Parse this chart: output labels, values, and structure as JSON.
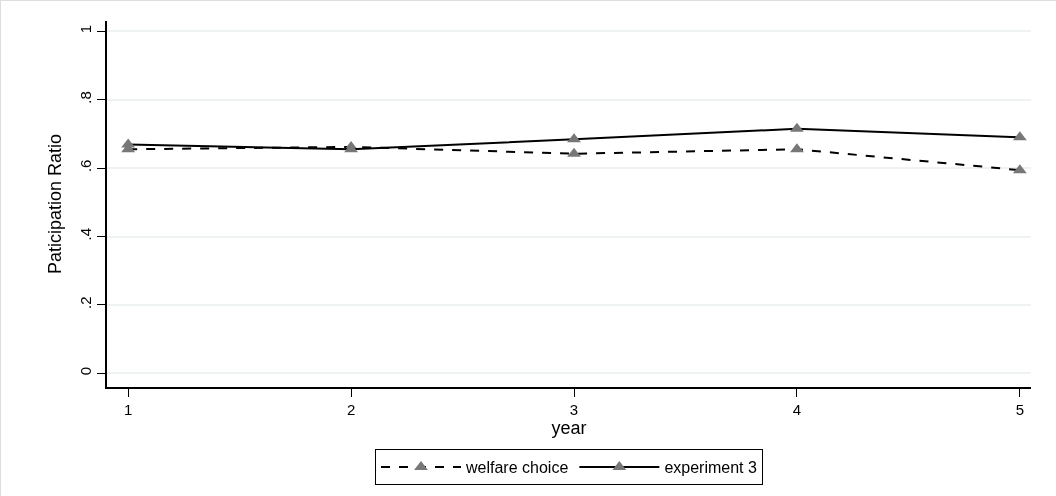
{
  "chart_data": {
    "type": "line",
    "xlabel": "year",
    "ylabel": "Paticipation Ratio",
    "x": [
      1,
      2,
      3,
      4,
      5
    ],
    "series": [
      {
        "name": "welfare choice",
        "color": "#000000",
        "line_style": "dashed",
        "values": [
          0.655,
          0.662,
          0.642,
          0.655,
          0.594
        ]
      },
      {
        "name": "experiment 3",
        "color": "#000000",
        "line_style": "solid",
        "values": [
          0.669,
          0.655,
          0.684,
          0.715,
          0.69
        ]
      }
    ],
    "xlim": [
      0.905,
      5.05
    ],
    "xticks": [
      1,
      2,
      3,
      4,
      5
    ],
    "ylim": [
      -0.04,
      1.03
    ],
    "yticks": [
      {
        "value": 0,
        "label": "0"
      },
      {
        "value": 0.2,
        "label": ".2"
      },
      {
        "value": 0.4,
        "label": ".4"
      },
      {
        "value": 0.6,
        "label": ".6"
      },
      {
        "value": 0.8,
        "label": ".8"
      },
      {
        "value": 1,
        "label": "1"
      }
    ],
    "grid": "y",
    "legend": "bottom",
    "marker": "triangle"
  }
}
